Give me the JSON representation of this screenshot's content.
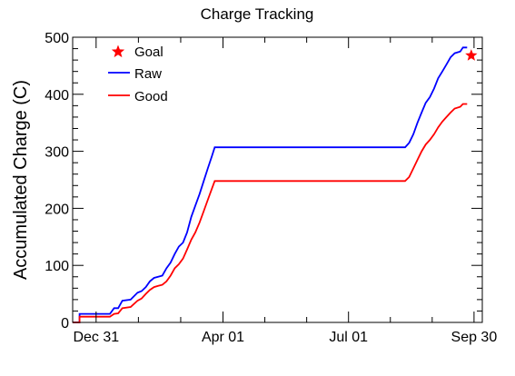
{
  "chart_data": {
    "type": "line",
    "title": "Charge Tracking",
    "xlabel": "",
    "ylabel": "Accumulated Charge (C)",
    "ylim": [
      0,
      500
    ],
    "yticks": [
      0,
      100,
      200,
      300,
      400,
      500
    ],
    "xlim": [
      "2023-12-14",
      "2024-10-06"
    ],
    "xticks": [
      {
        "date": "2023-12-31",
        "label": "Dec 31"
      },
      {
        "date": "2024-04-01",
        "label": "Apr 01"
      },
      {
        "date": "2024-07-01",
        "label": "Jul 01"
      },
      {
        "date": "2024-09-30",
        "label": "Sep 30"
      }
    ],
    "grid": false,
    "legend_position": "top-left",
    "legend": [
      {
        "label": "Goal",
        "marker": "star",
        "color": "#ff0000"
      },
      {
        "label": "Raw",
        "marker": "line",
        "color": "#0000ff"
      },
      {
        "label": "Good",
        "marker": "line",
        "color": "#ff0000"
      }
    ],
    "goal": {
      "x": "2024-09-28",
      "y": 468,
      "color": "#ff0000"
    },
    "series": [
      {
        "name": "Raw",
        "color": "#0000ff",
        "points": [
          [
            "2023-12-14",
            0
          ],
          [
            "2023-12-19",
            0
          ],
          [
            "2023-12-19",
            15
          ],
          [
            "2023-12-26",
            15
          ],
          [
            "2024-01-03",
            15
          ],
          [
            "2024-01-10",
            15
          ],
          [
            "2024-01-13",
            25
          ],
          [
            "2024-01-16",
            25
          ],
          [
            "2024-01-19",
            38
          ],
          [
            "2024-01-25",
            40
          ],
          [
            "2024-01-30",
            52
          ],
          [
            "2024-02-02",
            55
          ],
          [
            "2024-02-05",
            62
          ],
          [
            "2024-02-08",
            72
          ],
          [
            "2024-02-11",
            78
          ],
          [
            "2024-02-14",
            80
          ],
          [
            "2024-02-17",
            82
          ],
          [
            "2024-02-20",
            95
          ],
          [
            "2024-02-23",
            105
          ],
          [
            "2024-02-26",
            120
          ],
          [
            "2024-02-29",
            133
          ],
          [
            "2024-03-03",
            140
          ],
          [
            "2024-03-06",
            158
          ],
          [
            "2024-03-09",
            185
          ],
          [
            "2024-03-12",
            205
          ],
          [
            "2024-03-15",
            225
          ],
          [
            "2024-03-18",
            248
          ],
          [
            "2024-03-21",
            270
          ],
          [
            "2024-03-24",
            292
          ],
          [
            "2024-03-26",
            307
          ],
          [
            "2024-05-01",
            307
          ],
          [
            "2024-06-01",
            307
          ],
          [
            "2024-07-01",
            307
          ],
          [
            "2024-08-01",
            307
          ],
          [
            "2024-08-11",
            307
          ],
          [
            "2024-08-14",
            315
          ],
          [
            "2024-08-17",
            330
          ],
          [
            "2024-08-20",
            350
          ],
          [
            "2024-08-23",
            368
          ],
          [
            "2024-08-26",
            385
          ],
          [
            "2024-08-29",
            395
          ],
          [
            "2024-09-01",
            410
          ],
          [
            "2024-09-04",
            428
          ],
          [
            "2024-09-07",
            440
          ],
          [
            "2024-09-10",
            452
          ],
          [
            "2024-09-13",
            465
          ],
          [
            "2024-09-16",
            472
          ],
          [
            "2024-09-20",
            475
          ],
          [
            "2024-09-22",
            482
          ],
          [
            "2024-09-25",
            482
          ]
        ]
      },
      {
        "name": "Good",
        "color": "#ff0000",
        "points": [
          [
            "2023-12-14",
            0
          ],
          [
            "2023-12-19",
            0
          ],
          [
            "2023-12-19",
            10
          ],
          [
            "2023-12-26",
            10
          ],
          [
            "2024-01-03",
            10
          ],
          [
            "2024-01-10",
            10
          ],
          [
            "2024-01-13",
            15
          ],
          [
            "2024-01-16",
            16
          ],
          [
            "2024-01-19",
            25
          ],
          [
            "2024-01-25",
            27
          ],
          [
            "2024-01-30",
            38
          ],
          [
            "2024-02-02",
            42
          ],
          [
            "2024-02-05",
            50
          ],
          [
            "2024-02-08",
            57
          ],
          [
            "2024-02-11",
            62
          ],
          [
            "2024-02-14",
            64
          ],
          [
            "2024-02-17",
            66
          ],
          [
            "2024-02-20",
            72
          ],
          [
            "2024-02-23",
            82
          ],
          [
            "2024-02-26",
            95
          ],
          [
            "2024-02-29",
            102
          ],
          [
            "2024-03-03",
            112
          ],
          [
            "2024-03-06",
            128
          ],
          [
            "2024-03-09",
            145
          ],
          [
            "2024-03-12",
            158
          ],
          [
            "2024-03-15",
            175
          ],
          [
            "2024-03-18",
            195
          ],
          [
            "2024-03-21",
            215
          ],
          [
            "2024-03-24",
            235
          ],
          [
            "2024-03-26",
            248
          ],
          [
            "2024-05-01",
            248
          ],
          [
            "2024-06-01",
            248
          ],
          [
            "2024-07-01",
            248
          ],
          [
            "2024-08-01",
            248
          ],
          [
            "2024-08-11",
            248
          ],
          [
            "2024-08-14",
            255
          ],
          [
            "2024-08-17",
            270
          ],
          [
            "2024-08-20",
            285
          ],
          [
            "2024-08-23",
            300
          ],
          [
            "2024-08-26",
            312
          ],
          [
            "2024-08-29",
            320
          ],
          [
            "2024-09-01",
            330
          ],
          [
            "2024-09-04",
            342
          ],
          [
            "2024-09-07",
            352
          ],
          [
            "2024-09-10",
            360
          ],
          [
            "2024-09-13",
            368
          ],
          [
            "2024-09-16",
            375
          ],
          [
            "2024-09-20",
            378
          ],
          [
            "2024-09-22",
            383
          ],
          [
            "2024-09-25",
            383
          ]
        ]
      }
    ]
  }
}
